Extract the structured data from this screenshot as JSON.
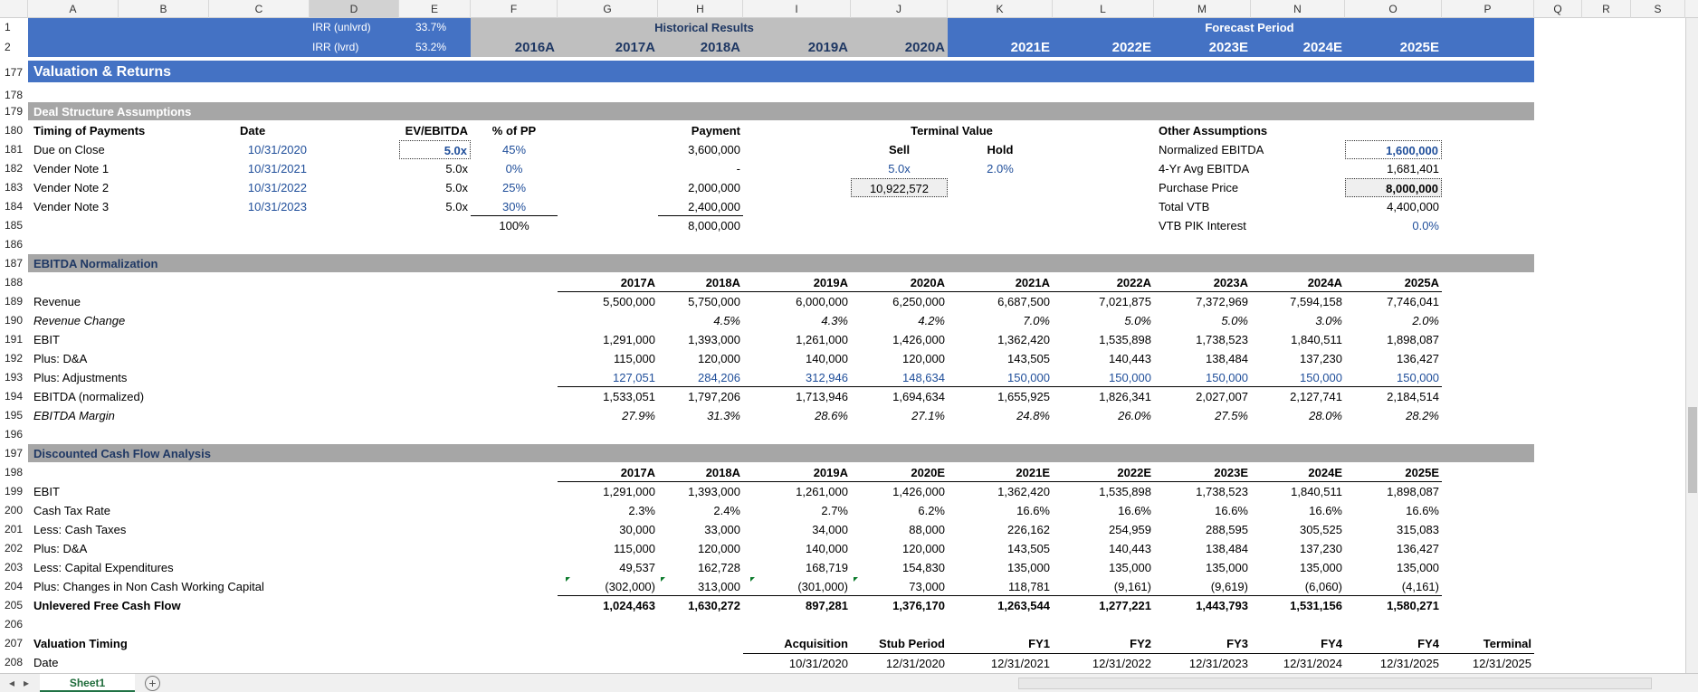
{
  "columns": [
    "A",
    "B",
    "C",
    "D",
    "E",
    "F",
    "G",
    "H",
    "I",
    "J",
    "K",
    "L",
    "M",
    "N",
    "O",
    "P",
    "Q",
    "R",
    "S"
  ],
  "irr": {
    "unlev_label": "IRR (unlvrd)",
    "unlev_value": "33.7%",
    "lev_label": "IRR (lvrd)",
    "lev_value": "53.2%"
  },
  "header": {
    "historical": "Historical Results",
    "forecast": "Forecast Period",
    "years": [
      "2016A",
      "2017A",
      "2018A",
      "2019A",
      "2020A",
      "2021E",
      "2022E",
      "2023E",
      "2024E",
      "2025E"
    ]
  },
  "title": "Valuation & Returns",
  "rownums": [
    "1",
    "2",
    "177",
    "178",
    "179",
    "180",
    "181",
    "182",
    "183",
    "184",
    "185",
    "186",
    "187",
    "188",
    "189",
    "190",
    "191",
    "192",
    "193",
    "194",
    "195",
    "196",
    "197",
    "198",
    "199",
    "200",
    "201",
    "202",
    "203",
    "204",
    "205",
    "206",
    "207",
    "208"
  ],
  "deal": {
    "section": "Deal Structure Assumptions",
    "head": {
      "timing": "Timing of Payments",
      "date": "Date",
      "ev": "EV/EBITDA",
      "pp": "% of PP",
      "payment": "Payment",
      "tv": "Terminal Value",
      "sell": "Sell",
      "hold": "Hold",
      "other": "Other Assumptions"
    },
    "rows": [
      {
        "label": "Due on Close",
        "date": "10/31/2020",
        "ev": "5.0x",
        "pp": "45%",
        "payment": "3,600,000"
      },
      {
        "label": "Vender Note 1",
        "date": "10/31/2021",
        "ev": "5.0x",
        "pp": "0%",
        "payment": "-"
      },
      {
        "label": "Vender Note 2",
        "date": "10/31/2022",
        "ev": "5.0x",
        "pp": "25%",
        "payment": "2,000,000"
      },
      {
        "label": "Vender Note 3",
        "date": "10/31/2023",
        "ev": "5.0x",
        "pp": "30%",
        "payment": "2,400,000"
      }
    ],
    "total_pp": "100%",
    "total_payment": "8,000,000",
    "tv_sell": "5.0x",
    "tv_hold": "2.0%",
    "tv_value": "10,922,572",
    "other": [
      {
        "label": "Normalized EBITDA",
        "value": "1,600,000"
      },
      {
        "label": "4-Yr Avg EBITDA",
        "value": "1,681,401"
      },
      {
        "label": "Purchase Price",
        "value": "8,000,000"
      },
      {
        "label": "Total VTB",
        "value": "4,400,000"
      },
      {
        "label": "VTB PIK Interest",
        "value": "0.0%"
      }
    ]
  },
  "ebitda": {
    "section": "EBITDA Normalization",
    "years": [
      "2017A",
      "2018A",
      "2019A",
      "2020A",
      "2021A",
      "2022A",
      "2023A",
      "2024A",
      "2025A"
    ],
    "rows": [
      {
        "label": "Revenue",
        "values": [
          "5,500,000",
          "5,750,000",
          "6,000,000",
          "6,250,000",
          "6,687,500",
          "7,021,875",
          "7,372,969",
          "7,594,158",
          "7,746,041"
        ]
      },
      {
        "label": "Revenue Change",
        "values": [
          "",
          "4.5%",
          "4.3%",
          "4.2%",
          "7.0%",
          "5.0%",
          "5.0%",
          "3.0%",
          "2.0%"
        ]
      },
      {
        "label": "EBIT",
        "values": [
          "1,291,000",
          "1,393,000",
          "1,261,000",
          "1,426,000",
          "1,362,420",
          "1,535,898",
          "1,738,523",
          "1,840,511",
          "1,898,087"
        ]
      },
      {
        "label": "Plus: D&A",
        "values": [
          "115,000",
          "120,000",
          "140,000",
          "120,000",
          "143,505",
          "140,443",
          "138,484",
          "137,230",
          "136,427"
        ]
      },
      {
        "label": "Plus: Adjustments",
        "values": [
          "127,051",
          "284,206",
          "312,946",
          "148,634",
          "150,000",
          "150,000",
          "150,000",
          "150,000",
          "150,000"
        ]
      },
      {
        "label": "EBITDA (normalized)",
        "values": [
          "1,533,051",
          "1,797,206",
          "1,713,946",
          "1,694,634",
          "1,655,925",
          "1,826,341",
          "2,027,007",
          "2,127,741",
          "2,184,514"
        ]
      },
      {
        "label": "EBITDA Margin",
        "values": [
          "27.9%",
          "31.3%",
          "28.6%",
          "27.1%",
          "24.8%",
          "26.0%",
          "27.5%",
          "28.0%",
          "28.2%"
        ]
      }
    ]
  },
  "dcf": {
    "section": "Discounted Cash Flow Analysis",
    "years": [
      "2017A",
      "2018A",
      "2019A",
      "2020E",
      "2021E",
      "2022E",
      "2023E",
      "2024E",
      "2025E"
    ],
    "rows": [
      {
        "label": "EBIT",
        "values": [
          "1,291,000",
          "1,393,000",
          "1,261,000",
          "1,426,000",
          "1,362,420",
          "1,535,898",
          "1,738,523",
          "1,840,511",
          "1,898,087"
        ]
      },
      {
        "label": "Cash Tax Rate",
        "values": [
          "2.3%",
          "2.4%",
          "2.7%",
          "6.2%",
          "16.6%",
          "16.6%",
          "16.6%",
          "16.6%",
          "16.6%"
        ]
      },
      {
        "label": "Less: Cash Taxes",
        "values": [
          "30,000",
          "33,000",
          "34,000",
          "88,000",
          "226,162",
          "254,959",
          "288,595",
          "305,525",
          "315,083"
        ]
      },
      {
        "label": "Plus: D&A",
        "values": [
          "115,000",
          "120,000",
          "140,000",
          "120,000",
          "143,505",
          "140,443",
          "138,484",
          "137,230",
          "136,427"
        ]
      },
      {
        "label": "Less: Capital Expenditures",
        "values": [
          "49,537",
          "162,728",
          "168,719",
          "154,830",
          "135,000",
          "135,000",
          "135,000",
          "135,000",
          "135,000"
        ]
      },
      {
        "label": "Plus: Changes in Non Cash Working Capital",
        "values": [
          "(302,000)",
          "313,000",
          "(301,000)",
          "73,000",
          "118,781",
          "(9,161)",
          "(9,619)",
          "(6,060)",
          "(4,161)"
        ]
      },
      {
        "label": "Unlevered Free Cash Flow",
        "values": [
          "1,024,463",
          "1,630,272",
          "897,281",
          "1,376,170",
          "1,263,544",
          "1,277,221",
          "1,443,793",
          "1,531,156",
          "1,580,271"
        ]
      }
    ]
  },
  "timing": {
    "label": "Valuation Timing",
    "date_label": "Date",
    "heads": [
      "Acquisition",
      "Stub Period",
      "FY1",
      "FY2",
      "FY3",
      "FY4",
      "FY4",
      "Terminal"
    ],
    "dates": [
      "10/31/2020",
      "12/31/2020",
      "12/31/2021",
      "12/31/2022",
      "12/31/2023",
      "12/31/2024",
      "12/31/2025",
      "12/31/2025"
    ]
  },
  "sheet_tab": "Sheet1",
  "add_sheet_icon": "+",
  "colors": {
    "header_blue": "#4472c4",
    "header_gray": "#bfbfbf",
    "section_gray": "#a6a6a6",
    "input_blue": "#1f4e9a"
  }
}
